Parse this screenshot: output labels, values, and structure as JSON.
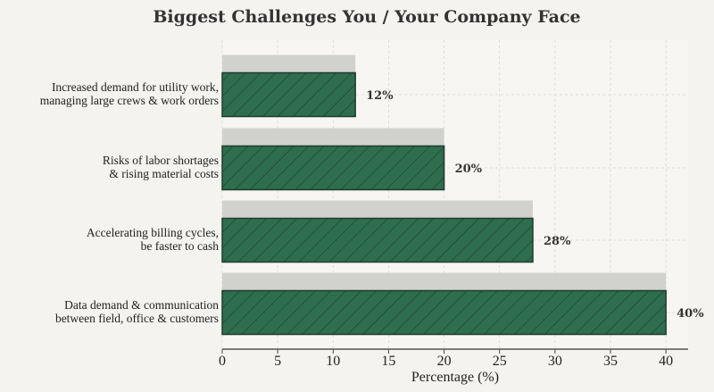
{
  "chart_data": {
    "type": "bar",
    "orientation": "horizontal",
    "title": "Biggest Challenges You / Your Company Face",
    "xlabel": "Percentage (%)",
    "ylabel": "",
    "categories": [
      [
        "Increased demand for utility work,",
        "managing large crews & work orders"
      ],
      [
        "Risks of labor shortages",
        "& rising material costs"
      ],
      [
        "Accelerating billing cycles,",
        "be faster to cash"
      ],
      [
        "Data demand & communication",
        "between field, office & customers"
      ]
    ],
    "values": [
      12,
      20,
      28,
      40
    ],
    "data_labels": [
      "12%",
      "20%",
      "28%",
      "40%"
    ],
    "xlim": [
      0,
      42
    ],
    "xticks": [
      0,
      5,
      10,
      15,
      20,
      25,
      30,
      35,
      40
    ],
    "grid": true,
    "bar_color": "#2e6e4e",
    "bar_hatch": "diagonal",
    "shadow_color": "#d1d2ce",
    "background": "#f4f3ef",
    "plot_background": "#f7f6f2"
  }
}
